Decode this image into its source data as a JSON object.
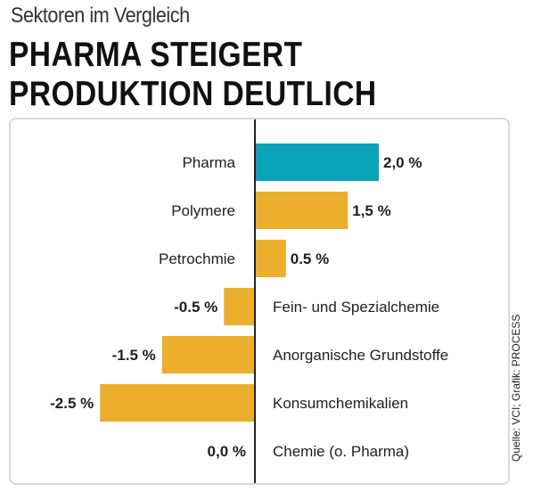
{
  "header": {
    "subtitle": "Sektoren im Vergleich",
    "title_line1": "PHARMA STEIGERT",
    "title_line2": "PRODUKTION DEUTLICH"
  },
  "source": "Quelle: VCI; Grafik: PROCESS",
  "colors": {
    "highlight": "#0aa3b8",
    "bar": "#ecae2d",
    "axis": "#222222",
    "frame": "#d6d9de"
  },
  "chart_data": {
    "type": "bar",
    "orientation": "horizontal",
    "categories": [
      "Pharma",
      "Polymere",
      "Petrochmie",
      "Fein- und Spezialchemie",
      "Anorganische Grundstoffe",
      "Konsumchemikalien",
      "Chemie (o. Pharma)"
    ],
    "values": [
      2.0,
      1.5,
      0.5,
      -0.5,
      -1.5,
      -2.5,
      0.0
    ],
    "value_labels": [
      "2,0 %",
      "1,5 %",
      "0.5 %",
      "-0.5 %",
      "-1.5 %",
      "-2.5 %",
      "0,0 %"
    ],
    "highlight_index": 0,
    "xlim": [
      -3.0,
      2.5
    ],
    "grid": false,
    "legend": "none"
  }
}
